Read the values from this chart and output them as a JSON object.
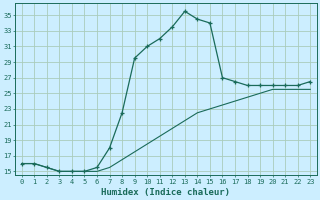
{
  "xlabel": "Humidex (Indice chaleur)",
  "background_color": "#cceeff",
  "grid_color": "#aaccbb",
  "line_color": "#1a6b5a",
  "xlim": [
    -0.5,
    23.5
  ],
  "ylim": [
    14.5,
    36.5
  ],
  "xticks": [
    0,
    1,
    2,
    3,
    4,
    5,
    6,
    7,
    8,
    9,
    10,
    11,
    12,
    13,
    14,
    15,
    16,
    17,
    18,
    19,
    20,
    21,
    22,
    23
  ],
  "yticks": [
    15,
    17,
    19,
    21,
    23,
    25,
    27,
    29,
    31,
    33,
    35
  ],
  "curve1_x": [
    0,
    1,
    2,
    3,
    4,
    5,
    6,
    7,
    8,
    9,
    10,
    11,
    12,
    13,
    14,
    15,
    16,
    17,
    18,
    19,
    20,
    21,
    22,
    23
  ],
  "curve1_y": [
    16.0,
    16.0,
    15.5,
    15.0,
    15.0,
    15.0,
    15.5,
    18.0,
    22.5,
    29.5,
    31.0,
    32.0,
    33.5,
    35.5,
    34.5,
    34.0,
    27.0,
    26.5,
    26.0,
    26.0,
    26.0,
    26.0,
    26.0,
    26.5
  ],
  "curve2_x": [
    0,
    1,
    2,
    3,
    4,
    5,
    6,
    7,
    8,
    9,
    10,
    11,
    12,
    13,
    14,
    15,
    16,
    17,
    18,
    19,
    20,
    21,
    22,
    23
  ],
  "curve2_y": [
    16.0,
    16.0,
    15.5,
    15.0,
    15.0,
    15.0,
    15.0,
    15.5,
    16.5,
    17.5,
    18.5,
    19.5,
    20.5,
    21.5,
    22.5,
    23.0,
    23.5,
    24.0,
    24.5,
    25.0,
    25.5,
    25.5,
    25.5,
    25.5
  ]
}
